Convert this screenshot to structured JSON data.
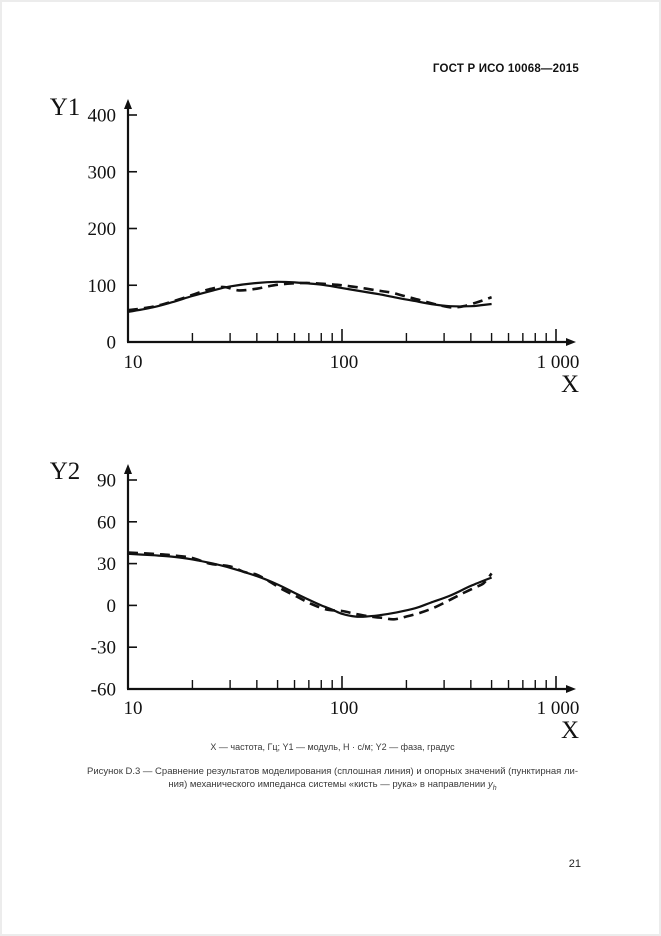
{
  "header": {
    "title": "ГОСТ Р ИСО 10068—2015"
  },
  "footer": {
    "page_number": "21"
  },
  "caption": {
    "legend_line": "X — частота, Гц; Y1 — модуль, Н · с/м; Y2 — фаза, градус",
    "figure_line1": "Рисунок D.3 — Сравнение результатов моделирования (сплошная линия) и опорных значений (пунктирная ли-",
    "figure_line2": "ния) механического импеданса системы «кисть — рука» в направлении ",
    "figure_var": "y",
    "figure_var_sub": "h"
  },
  "chart_data": [
    {
      "type": "line",
      "title": "",
      "xlabel": "X",
      "ylabel": "Y1",
      "x_scale": "log",
      "xlim": [
        10,
        1000
      ],
      "ylim": [
        0,
        400
      ],
      "x_tick_values": [
        10,
        100,
        1000
      ],
      "x_tick_labels": [
        "10",
        "100",
        "1 000"
      ],
      "y_tick_values": [
        0,
        100,
        200,
        300,
        400
      ],
      "grid": false,
      "legend_position": "none",
      "line_color": "#111111",
      "series": [
        {
          "name": "моделирование (сплошная линия)",
          "style": "solid",
          "points": [
            [
              10,
              53
            ],
            [
              13,
              61
            ],
            [
              16,
              70
            ],
            [
              20,
              81
            ],
            [
              25,
              91
            ],
            [
              30,
              98
            ],
            [
              40,
              104
            ],
            [
              50,
              106
            ],
            [
              60,
              105
            ],
            [
              80,
              101
            ],
            [
              100,
              95
            ],
            [
              125,
              89
            ],
            [
              150,
              84
            ],
            [
              180,
              78
            ],
            [
              220,
              72
            ],
            [
              270,
              66
            ],
            [
              320,
              63
            ],
            [
              400,
              63
            ],
            [
              450,
              65
            ],
            [
              500,
              67
            ]
          ]
        },
        {
          "name": "опорные значения (пунктирная линия)",
          "style": "dashed",
          "points": [
            [
              10,
              56
            ],
            [
              13,
              62
            ],
            [
              16,
              71
            ],
            [
              20,
              83
            ],
            [
              24,
              93
            ],
            [
              28,
              97
            ],
            [
              33,
              91
            ],
            [
              40,
              94
            ],
            [
              48,
              100
            ],
            [
              58,
              103
            ],
            [
              70,
              104
            ],
            [
              85,
              102
            ],
            [
              100,
              100
            ],
            [
              120,
              96
            ],
            [
              145,
              91
            ],
            [
              170,
              87
            ],
            [
              200,
              80
            ],
            [
              235,
              73
            ],
            [
              270,
              67
            ],
            [
              300,
              63
            ],
            [
              330,
              61
            ],
            [
              370,
              63
            ],
            [
              420,
              69
            ],
            [
              460,
              74
            ],
            [
              500,
              79
            ]
          ]
        }
      ]
    },
    {
      "type": "line",
      "title": "",
      "xlabel": "X",
      "ylabel": "Y2",
      "x_scale": "log",
      "xlim": [
        10,
        1000
      ],
      "ylim": [
        -60,
        90
      ],
      "x_tick_values": [
        10,
        100,
        1000
      ],
      "x_tick_labels": [
        "10",
        "100",
        "1 000"
      ],
      "y_tick_values": [
        -60,
        -30,
        0,
        30,
        60,
        90
      ],
      "grid": false,
      "legend_position": "none",
      "line_color": "#111111",
      "series": [
        {
          "name": "моделирование (сплошная линия)",
          "style": "solid",
          "points": [
            [
              10,
              37
            ],
            [
              13,
              36
            ],
            [
              16,
              35
            ],
            [
              20,
              33
            ],
            [
              25,
              30
            ],
            [
              30,
              27
            ],
            [
              40,
              21
            ],
            [
              50,
              15
            ],
            [
              60,
              9
            ],
            [
              70,
              4
            ],
            [
              80,
              0
            ],
            [
              90,
              -3
            ],
            [
              100,
              -6
            ],
            [
              115,
              -8
            ],
            [
              130,
              -8
            ],
            [
              150,
              -7
            ],
            [
              180,
              -5
            ],
            [
              220,
              -2
            ],
            [
              260,
              2
            ],
            [
              320,
              7
            ],
            [
              400,
              14
            ],
            [
              500,
              20
            ]
          ]
        },
        {
          "name": "опорные значения (пунктирная линия)",
          "style": "dashed",
          "points": [
            [
              10,
              38
            ],
            [
              13,
              37
            ],
            [
              16,
              36
            ],
            [
              20,
              34
            ],
            [
              24,
              30
            ],
            [
              30,
              28
            ],
            [
              35,
              24
            ],
            [
              40,
              22
            ],
            [
              46,
              17
            ],
            [
              52,
              12
            ],
            [
              62,
              6
            ],
            [
              72,
              1
            ],
            [
              85,
              -3
            ],
            [
              100,
              -4
            ],
            [
              115,
              -6
            ],
            [
              135,
              -8
            ],
            [
              155,
              -9
            ],
            [
              175,
              -10
            ],
            [
              200,
              -8
            ],
            [
              235,
              -5
            ],
            [
              275,
              -1
            ],
            [
              320,
              4
            ],
            [
              370,
              9
            ],
            [
              420,
              13
            ],
            [
              460,
              16
            ],
            [
              500,
              23
            ]
          ]
        }
      ]
    }
  ]
}
